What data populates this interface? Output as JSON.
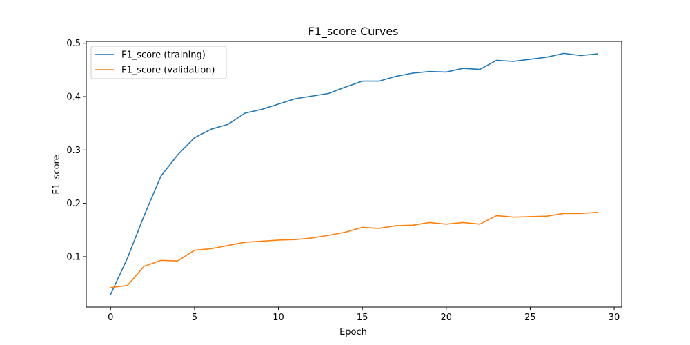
{
  "chart_data": {
    "type": "line",
    "title": "F1_score Curves",
    "xlabel": "Epoch",
    "ylabel": "F1_score",
    "xlim": [
      -1.45,
      30.45
    ],
    "ylim": [
      0.0055,
      0.5035
    ],
    "xticks": [
      0,
      5,
      10,
      15,
      20,
      25,
      30
    ],
    "yticks": [
      0.1,
      0.2,
      0.3,
      0.4,
      0.5
    ],
    "grid": false,
    "legend_position": "top-left",
    "x": [
      0,
      1,
      2,
      3,
      4,
      5,
      6,
      7,
      8,
      9,
      10,
      11,
      12,
      13,
      14,
      15,
      16,
      17,
      18,
      19,
      20,
      21,
      22,
      23,
      24,
      25,
      26,
      27,
      28,
      29
    ],
    "series": [
      {
        "name": "F1_score (training)",
        "color": "#1f77b4",
        "values": [
          0.029,
          0.097,
          0.177,
          0.251,
          0.291,
          0.323,
          0.339,
          0.348,
          0.369,
          0.376,
          0.386,
          0.396,
          0.401,
          0.406,
          0.418,
          0.429,
          0.429,
          0.438,
          0.444,
          0.447,
          0.446,
          0.453,
          0.451,
          0.468,
          0.466,
          0.47,
          0.474,
          0.481,
          0.477,
          0.48
        ]
      },
      {
        "name": "F1_score (validation)",
        "color": "#ff7f0e",
        "values": [
          0.042,
          0.046,
          0.082,
          0.093,
          0.092,
          0.112,
          0.115,
          0.121,
          0.127,
          0.129,
          0.131,
          0.132,
          0.135,
          0.14,
          0.146,
          0.155,
          0.153,
          0.158,
          0.159,
          0.164,
          0.161,
          0.164,
          0.161,
          0.177,
          0.174,
          0.175,
          0.176,
          0.181,
          0.181,
          0.183
        ]
      }
    ]
  }
}
